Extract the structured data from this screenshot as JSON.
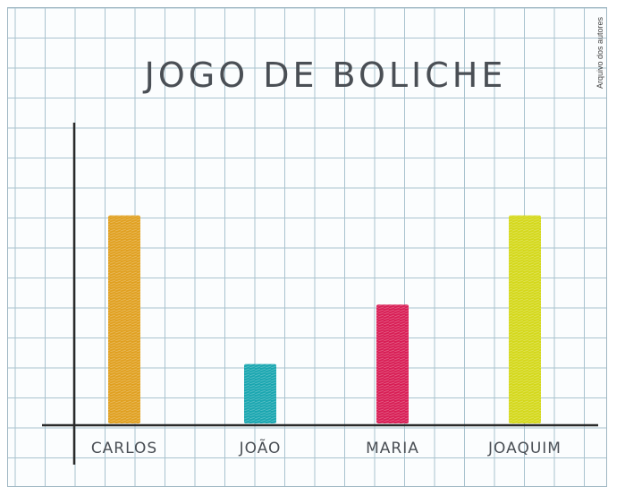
{
  "credit": "Arquivo dos autores",
  "chart_data": {
    "type": "bar",
    "title": "JOGO DE BOLICHE",
    "xlabel": "",
    "ylabel": "",
    "categories": [
      "CARLOS",
      "JOÃO",
      "MARIA",
      "JOAQUIM"
    ],
    "values": [
      7,
      2,
      4,
      7
    ],
    "ylim": [
      0,
      10
    ],
    "grid": true,
    "legend": "none",
    "bar_colors": [
      "#e0a020",
      "#1aa6b0",
      "#d81e55",
      "#d4d81a"
    ],
    "grid_color": "#a9c3cf",
    "axis_color": "#2a2a2a"
  }
}
